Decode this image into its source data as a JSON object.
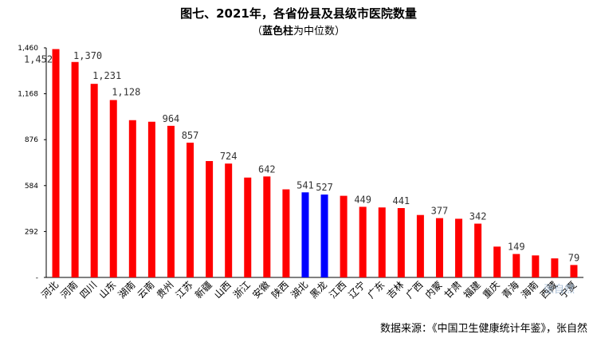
{
  "title": "图七、2021年，各省份县及县级市医院数量",
  "subtitle_prefix": "（",
  "subtitle_bold": "蓝色柱",
  "subtitle_rest": "为中位数）",
  "source": "数据来源：《中国卫生健康统计年鉴》，张自然",
  "watermark": "张自然",
  "chart_data": {
    "type": "bar",
    "categories": [
      "河北",
      "河南",
      "四川",
      "山东",
      "湖南",
      "云南",
      "贵州",
      "江苏",
      "新疆",
      "山西",
      "浙江",
      "安徽",
      "陕西",
      "湖北",
      "黑龙",
      "江西",
      "辽宁",
      "广东",
      "吉林",
      "广西",
      "内蒙",
      "甘肃",
      "福建",
      "重庆",
      "青海",
      "海南",
      "西藏",
      "宁夏"
    ],
    "values": [
      1452,
      1370,
      1231,
      1128,
      1000,
      990,
      964,
      857,
      740,
      724,
      635,
      642,
      560,
      541,
      527,
      519,
      449,
      445,
      441,
      397,
      377,
      373,
      342,
      196,
      149,
      140,
      121,
      79
    ],
    "data_labels": {
      "0": "1,452",
      "1": "1,370",
      "2": "1,231",
      "3": "1,128",
      "6": "964",
      "7": "857",
      "9": "724",
      "11": "642",
      "13": "541",
      "14": "527",
      "16": "449",
      "18": "441",
      "20": "377",
      "22": "342",
      "24": "149",
      "27": "79"
    },
    "highlight_indices": [
      13,
      14
    ],
    "bar_color": "#ff0000",
    "highlight_color": "#0000ff",
    "ylim": [
      0,
      1460
    ],
    "yticks": [
      0,
      292,
      584,
      876,
      1168,
      1460
    ],
    "ytick_labels": [
      "-",
      "292",
      "584",
      "876",
      "1,168",
      "1,460"
    ],
    "grid": false,
    "legend": "none"
  }
}
